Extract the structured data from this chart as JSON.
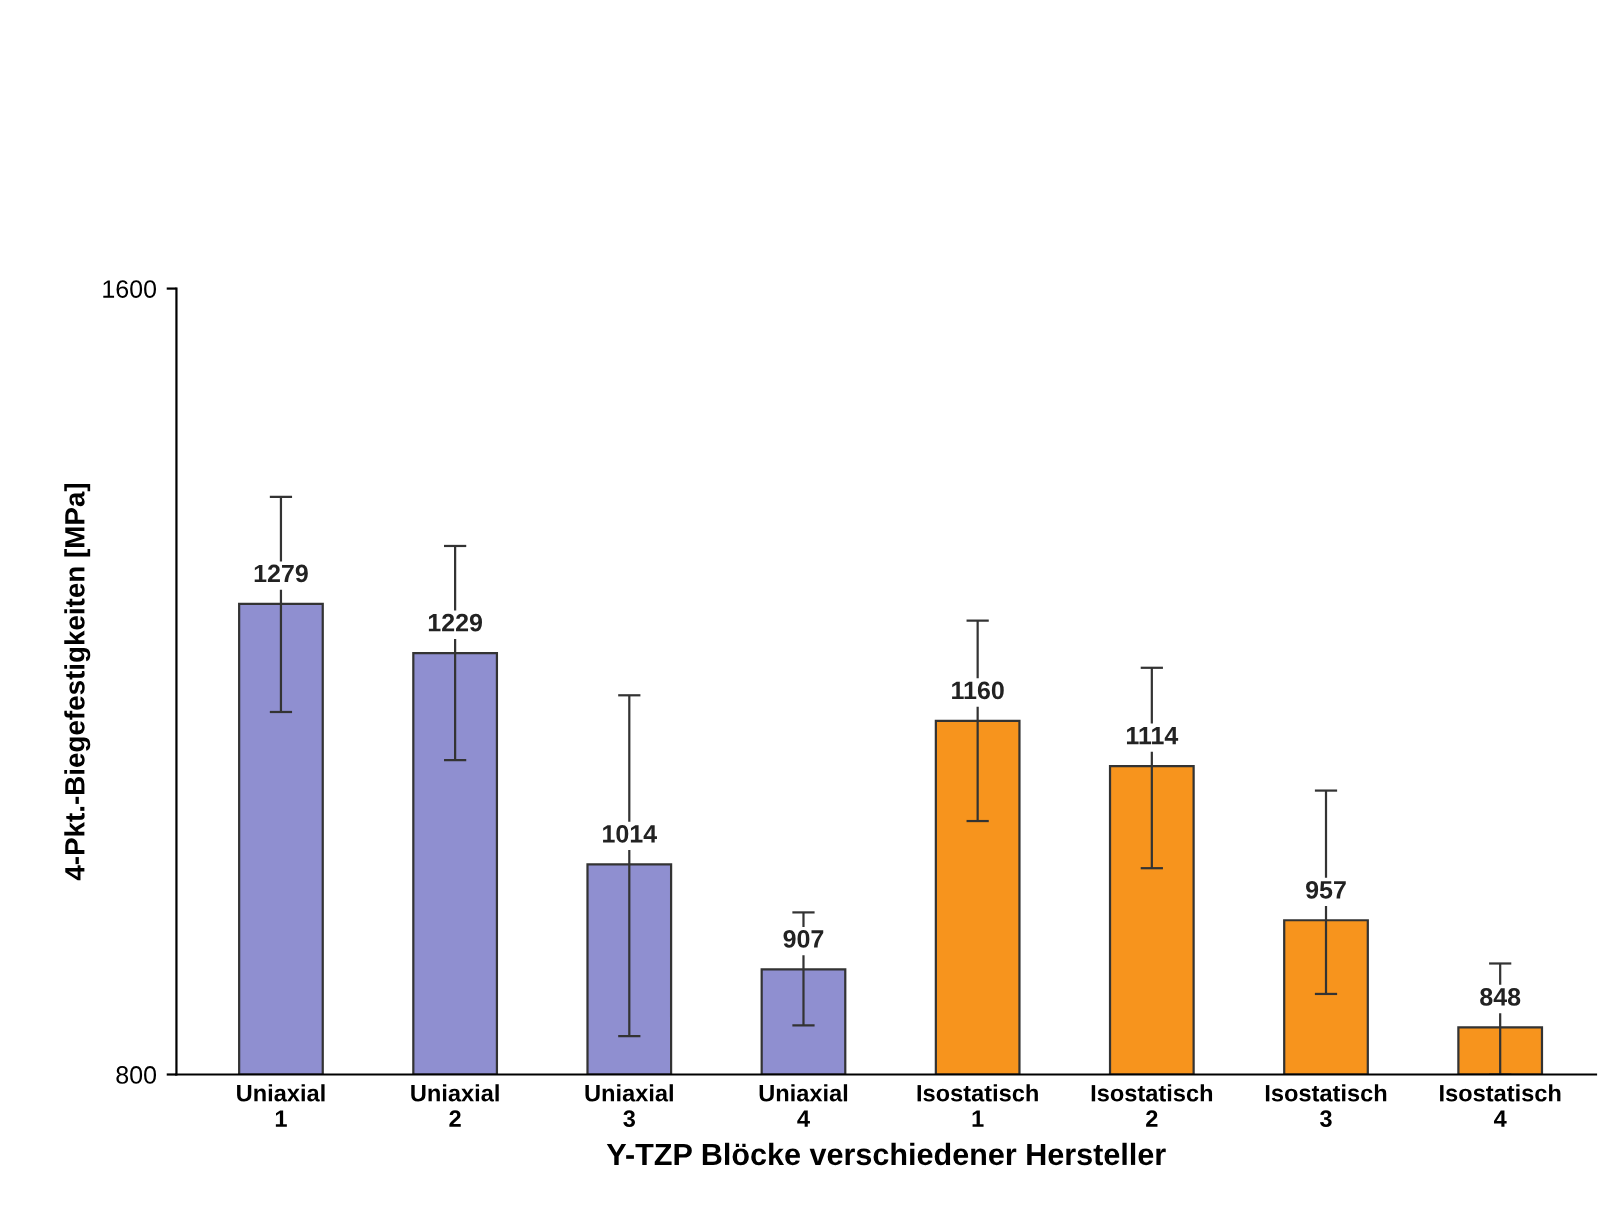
{
  "chart_data": {
    "type": "bar",
    "xlabel": "Y-TZP Blöcke verschiedener Hersteller",
    "ylabel": "4-Pkt.-Biegefestigkeiten [MPa]",
    "categories": [
      "Uniaxial\n1",
      "Uniaxial\n2",
      "Uniaxial\n3",
      "Uniaxial\n4",
      "Isostatisch\n1",
      "Isostatisch\n2",
      "Isostatisch\n3",
      "Isostatisch\n4"
    ],
    "values": [
      1279,
      1229,
      1014,
      907,
      1160,
      1114,
      957,
      848
    ],
    "colors": [
      "#8f8fd0",
      "#8f8fd0",
      "#8f8fd0",
      "#8f8fd0",
      "#f7941d",
      "#f7941d",
      "#f7941d",
      "#f7941d"
    ],
    "errors": [
      [
        1169,
        1388
      ],
      [
        1120,
        1338
      ],
      [
        839,
        1186
      ],
      [
        850,
        965
      ],
      [
        1058,
        1262
      ],
      [
        1010,
        1214
      ],
      [
        882,
        1089
      ],
      [
        800,
        913
      ]
    ],
    "ylim": [
      800,
      1600
    ],
    "yticks": [
      800,
      1600
    ],
    "data_labels": true,
    "grid": false,
    "legend": false
  }
}
